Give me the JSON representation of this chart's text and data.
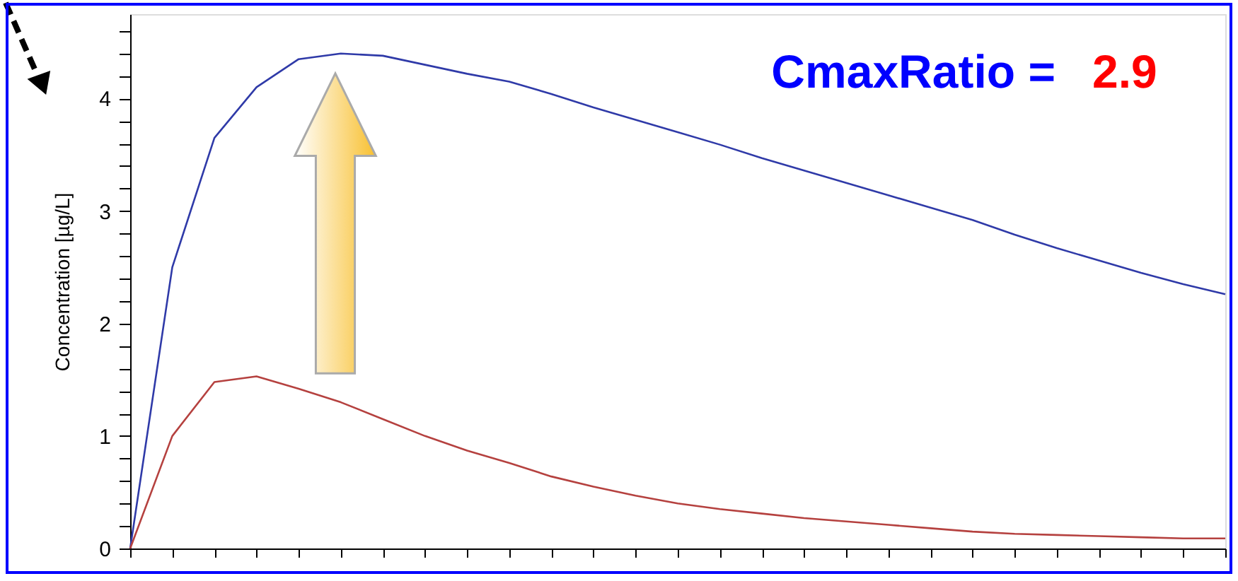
{
  "chart_data": {
    "type": "line",
    "ylabel": "Concentration [µg/L]",
    "annotations": [
      "CmaxRatio =",
      "2.9"
    ],
    "categories": [
      null,
      null,
      null,
      null,
      null,
      null,
      null,
      null,
      null,
      null,
      null,
      null,
      null,
      null,
      null,
      null,
      null,
      null,
      null,
      null,
      null,
      null,
      null,
      null,
      null,
      null,
      null
    ],
    "series": [
      {
        "color": "#2f3aa8",
        "values": [
          0,
          2.5,
          3.65,
          4.1,
          4.35,
          4.4,
          4.38,
          4.3,
          4.22,
          4.15,
          4.04,
          3.92,
          3.81,
          3.7,
          3.59,
          3.47,
          3.36,
          3.25,
          3.14,
          3.03,
          2.92,
          2.79,
          2.67,
          2.56,
          2.45,
          2.35,
          2.26
        ]
      },
      {
        "color": "#b5413f",
        "values": [
          0,
          1.0,
          1.48,
          1.53,
          1.42,
          1.3,
          1.15,
          1.0,
          0.87,
          0.76,
          0.64,
          0.55,
          0.47,
          0.4,
          0.35,
          0.31,
          0.27,
          0.24,
          0.21,
          0.18,
          0.15,
          0.13,
          0.12,
          0.11,
          0.1,
          0.09,
          0.09
        ]
      }
    ],
    "ylim": [
      0,
      4.75
    ],
    "yticks": [
      0,
      {
        "value": 0.2,
        "label": null
      },
      {
        "value": 0.4,
        "label": null
      },
      {
        "value": 0.6,
        "label": null
      },
      {
        "value": 0.8,
        "label": null
      },
      1,
      {
        "value": 1.2,
        "label": null
      },
      {
        "value": 1.4,
        "label": null
      },
      {
        "value": 1.6,
        "label": null
      },
      {
        "value": 1.8,
        "label": null
      },
      2,
      {
        "value": 2.2,
        "label": null
      },
      {
        "value": 2.4,
        "label": null
      },
      {
        "value": 2.6,
        "label": null
      },
      {
        "value": 2.8,
        "label": null
      },
      3,
      {
        "value": 3.2,
        "label": null
      },
      {
        "value": 3.4,
        "label": null
      },
      {
        "value": 3.6,
        "label": null
      },
      {
        "value": 3.8,
        "label": null
      },
      4,
      {
        "value": 4.2,
        "label": null
      },
      {
        "value": 4.4,
        "label": null
      },
      {
        "value": 4.6,
        "label": null
      }
    ],
    "tick_labels": "y",
    "grid": false,
    "line_style": "solid",
    "marker": "none"
  }
}
